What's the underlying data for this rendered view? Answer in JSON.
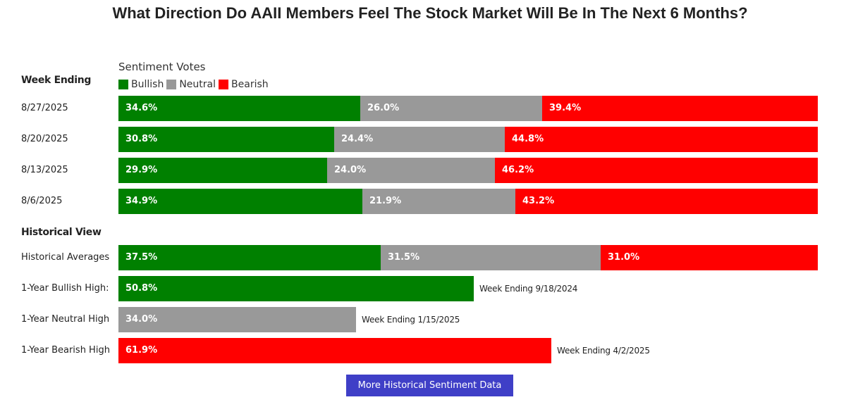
{
  "chart_data": {
    "type": "bar",
    "title": "What Direction Do AAII Members Feel The Stock Market Will Be In The Next 6 Months?",
    "subtitle": "Sentiment Votes",
    "stacked": true,
    "horizontal": true,
    "legend": [
      {
        "name": "Bullish",
        "color": "#008000"
      },
      {
        "name": "Neutral",
        "color": "#999999"
      },
      {
        "name": "Bearish",
        "color": "#ff0000"
      }
    ],
    "weekly": {
      "heading": "Week Ending",
      "rows": [
        {
          "label": "8/27/2025",
          "bullish": "34.6%",
          "neutral": "26.0%",
          "bearish": "39.4%"
        },
        {
          "label": "8/20/2025",
          "bullish": "30.8%",
          "neutral": "24.4%",
          "bearish": "44.8%"
        },
        {
          "label": "8/13/2025",
          "bullish": "29.9%",
          "neutral": "24.0%",
          "bearish": "46.2%"
        },
        {
          "label": "8/6/2025",
          "bullish": "34.9%",
          "neutral": "21.9%",
          "bearish": "43.2%"
        }
      ]
    },
    "historical": {
      "heading": "Historical View",
      "averages": {
        "label": "Historical Averages",
        "bullish": "37.5%",
        "neutral": "31.5%",
        "bearish": "31.0%"
      },
      "highs": [
        {
          "label": "1-Year Bullish High:",
          "series": "Bullish",
          "value": "50.8%",
          "note": "Week Ending 9/18/2024"
        },
        {
          "label": "1-Year Neutral High",
          "series": "Neutral",
          "value": "34.0%",
          "note": "Week Ending 1/15/2025"
        },
        {
          "label": "1-Year Bearish High",
          "series": "Bearish",
          "value": "61.9%",
          "note": "Week Ending 4/2/2025"
        }
      ]
    }
  },
  "button": {
    "label": "More Historical Sentiment Data"
  }
}
